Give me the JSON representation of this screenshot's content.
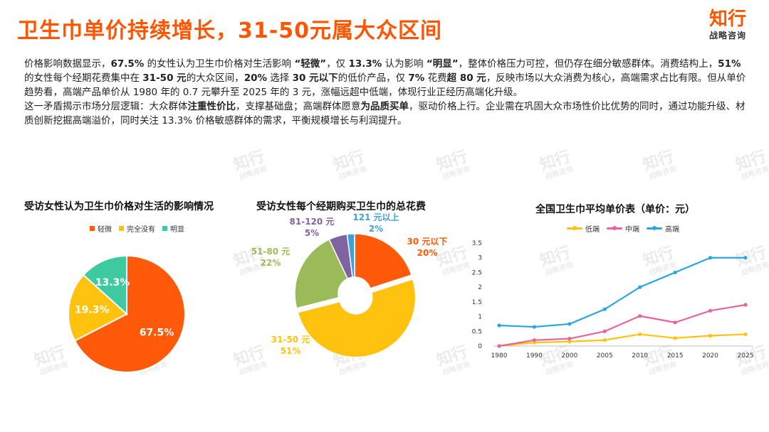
{
  "header": {
    "title": "卫生巾单价持续增长，31-50元属大众区间",
    "logo_main": "知行",
    "logo_sub": "战略咨询"
  },
  "body": {
    "p1": [
      {
        "t": "价格影响数据显示，",
        "b": false
      },
      {
        "t": "67.5%",
        "b": true
      },
      {
        "t": " 的女性认为卫生巾价格对生活影响 ",
        "b": false
      },
      {
        "t": "“轻微”",
        "b": true
      },
      {
        "t": "，仅 ",
        "b": false
      },
      {
        "t": "13.3%",
        "b": true
      },
      {
        "t": " 认为影响 ",
        "b": false
      },
      {
        "t": "“明显”",
        "b": true
      },
      {
        "t": "，整体价格压力可控，但仍存在细分敏感群体。消费结构上，",
        "b": false
      },
      {
        "t": "51%",
        "b": true
      },
      {
        "t": " 的女性每个经期花费集中在 ",
        "b": false
      },
      {
        "t": "31-50 元",
        "b": true
      },
      {
        "t": "的大众区间，",
        "b": false
      },
      {
        "t": "20%",
        "b": true
      },
      {
        "t": " 选择 ",
        "b": false
      },
      {
        "t": "30 元以下",
        "b": true
      },
      {
        "t": "的低价产品，仅 ",
        "b": false
      },
      {
        "t": "7%",
        "b": true
      },
      {
        "t": " 花费",
        "b": false
      },
      {
        "t": "超 80 元",
        "b": true
      },
      {
        "t": "，反映市场以大众消费为核心，高端需求占比有限。但从单价趋势看，高端产品单价从 1980 年的 0.7 元攀升至 2025 年的 3 元，涨幅远超中低端，体现行业正经历高端化升级。",
        "b": false
      }
    ],
    "p2": [
      {
        "t": "这一矛盾揭示市场分层逻辑：大众群体",
        "b": false
      },
      {
        "t": "注重性价比",
        "b": true
      },
      {
        "t": "，支撑基础盘；高端群体愿意",
        "b": false
      },
      {
        "t": "为品质买单",
        "b": true
      },
      {
        "t": "，驱动价格上行。企业需在巩固大众市场性价比优势的同时，通过功能升级、材质创新挖掘高端溢价，同时关注 13.3% 价格敏感群体的需求，平衡规模增长与利润提升。",
        "b": false
      }
    ]
  },
  "watermark": {
    "main": "知行",
    "sub": "战略咨询"
  },
  "chart_data": [
    {
      "type": "pie",
      "title": "受访女性认为卫生巾价格对生活的影响情况",
      "legend_position": "top",
      "categories": [
        "轻微",
        "完全没有",
        "明显"
      ],
      "values": [
        67.5,
        19.3,
        13.3
      ],
      "labels": [
        "67.5%",
        "19.3%",
        "13.3%"
      ],
      "colors": [
        "#ff5a0a",
        "#ffc20e",
        "#3fc9a0"
      ]
    },
    {
      "type": "pie",
      "title": "受访女性每个经期购买卫生巾的总花费",
      "donut": true,
      "categories": [
        "30 元以下",
        "31-50 元",
        "51-80 元",
        "81-120 元",
        "121 元以上"
      ],
      "values": [
        20,
        51,
        22,
        5,
        2
      ],
      "labels": [
        "20%",
        "51%",
        "22%",
        "5%",
        "2%"
      ],
      "colors": [
        "#ff5a0a",
        "#ffc20e",
        "#9bbb59",
        "#8064a2",
        "#3ea0d8"
      ]
    },
    {
      "type": "line",
      "title": "全国卫生巾平均单价表（单价：元）",
      "legend_position": "top",
      "x": [
        "1980",
        "1990",
        "2000",
        "2005",
        "2010",
        "2015",
        "2020",
        "2025"
      ],
      "ylim": [
        0,
        3.5
      ],
      "yticks": [
        "0",
        "0.5",
        "1",
        "1.5",
        "2",
        "2.5",
        "3",
        "3.5"
      ],
      "grid": false,
      "series": [
        {
          "name": "低端",
          "color": "#ffc20e",
          "values": [
            0.0,
            0.12,
            0.15,
            0.2,
            0.4,
            0.27,
            0.35,
            0.4
          ]
        },
        {
          "name": "中端",
          "color": "#e8649c",
          "values": [
            0.0,
            0.2,
            0.25,
            0.5,
            1.02,
            0.8,
            1.2,
            1.4
          ]
        },
        {
          "name": "高端",
          "color": "#2aa6e0",
          "values": [
            0.7,
            0.65,
            0.75,
            1.25,
            2.0,
            2.5,
            3.0,
            3.0
          ]
        }
      ]
    }
  ]
}
